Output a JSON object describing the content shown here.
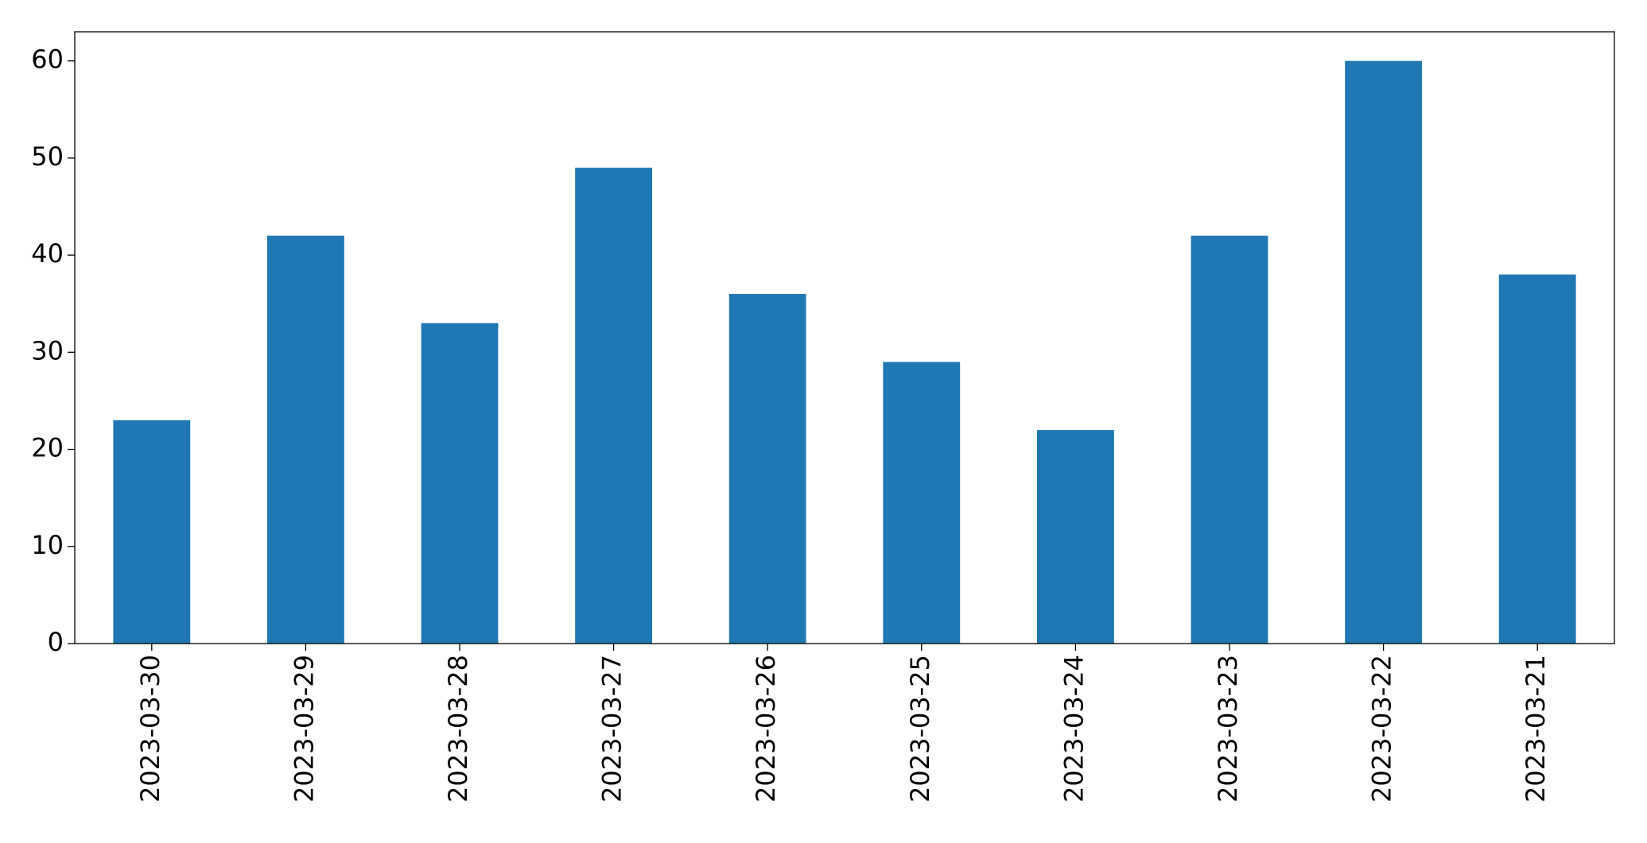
{
  "chart_data": {
    "type": "bar",
    "categories": [
      "2023-03-30",
      "2023-03-29",
      "2023-03-28",
      "2023-03-27",
      "2023-03-26",
      "2023-03-25",
      "2023-03-24",
      "2023-03-23",
      "2023-03-22",
      "2023-03-21"
    ],
    "values": [
      23,
      42,
      33,
      49,
      36,
      29,
      22,
      42,
      60,
      38
    ],
    "color": "#1f77b4",
    "ylim": [
      0,
      63
    ],
    "yticks": [
      0,
      10,
      20,
      30,
      40,
      50,
      60
    ],
    "grid": false
  }
}
